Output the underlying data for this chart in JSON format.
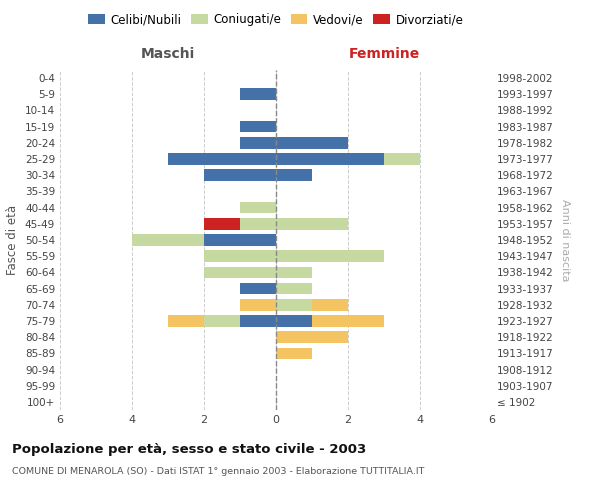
{
  "age_groups": [
    "100+",
    "95-99",
    "90-94",
    "85-89",
    "80-84",
    "75-79",
    "70-74",
    "65-69",
    "60-64",
    "55-59",
    "50-54",
    "45-49",
    "40-44",
    "35-39",
    "30-34",
    "25-29",
    "20-24",
    "15-19",
    "10-14",
    "5-9",
    "0-4"
  ],
  "birth_years": [
    "≤ 1902",
    "1903-1907",
    "1908-1912",
    "1913-1917",
    "1918-1922",
    "1923-1927",
    "1928-1932",
    "1933-1937",
    "1938-1942",
    "1943-1947",
    "1948-1952",
    "1953-1957",
    "1958-1962",
    "1963-1967",
    "1968-1972",
    "1973-1977",
    "1978-1982",
    "1983-1987",
    "1988-1992",
    "1993-1997",
    "1998-2002"
  ],
  "maschi_celibi": [
    0,
    0,
    0,
    0,
    0,
    1,
    0,
    1,
    0,
    0,
    2,
    0,
    0,
    0,
    2,
    3,
    1,
    1,
    0,
    1,
    0
  ],
  "maschi_coniugati": [
    0,
    0,
    0,
    0,
    0,
    1,
    0,
    0,
    2,
    2,
    2,
    1,
    1,
    0,
    0,
    0,
    0,
    0,
    0,
    0,
    0
  ],
  "maschi_vedovi": [
    0,
    0,
    0,
    0,
    0,
    1,
    1,
    0,
    0,
    0,
    0,
    0,
    0,
    0,
    0,
    0,
    0,
    0,
    0,
    0,
    0
  ],
  "maschi_divorziati": [
    0,
    0,
    0,
    0,
    0,
    0,
    0,
    0,
    0,
    0,
    0,
    1,
    0,
    0,
    0,
    0,
    0,
    0,
    0,
    0,
    0
  ],
  "femmine_nubili": [
    0,
    0,
    0,
    0,
    0,
    1,
    0,
    0,
    0,
    0,
    0,
    0,
    0,
    0,
    1,
    3,
    2,
    0,
    0,
    0,
    0
  ],
  "femmine_coniugate": [
    0,
    0,
    0,
    0,
    0,
    0,
    1,
    1,
    1,
    3,
    0,
    2,
    0,
    0,
    0,
    1,
    0,
    0,
    0,
    0,
    0
  ],
  "femmine_vedove": [
    0,
    0,
    0,
    1,
    2,
    2,
    1,
    0,
    0,
    0,
    0,
    0,
    0,
    0,
    0,
    0,
    0,
    0,
    0,
    0,
    0
  ],
  "femmine_divorziate": [
    0,
    0,
    0,
    0,
    0,
    0,
    0,
    0,
    0,
    0,
    0,
    0,
    0,
    0,
    0,
    0,
    0,
    0,
    0,
    0,
    0
  ],
  "color_celibi": "#4472a8",
  "color_coniugati": "#c5d9a0",
  "color_vedovi": "#f5c462",
  "color_divorziati": "#cc2222",
  "xlim": 6,
  "title": "Popolazione per età, sesso e stato civile - 2003",
  "subtitle": "COMUNE DI MENAROLA (SO) - Dati ISTAT 1° gennaio 2003 - Elaborazione TUTTITALIA.IT",
  "legend_labels": [
    "Celibi/Nubili",
    "Coniugati/e",
    "Vedovi/e",
    "Divorziati/e"
  ],
  "label_maschi": "Maschi",
  "label_femmine": "Femmine",
  "label_fasce": "Fasce di età",
  "label_anni": "Anni di nascita",
  "bg_color": "#ffffff",
  "grid_color": "#cccccc",
  "bar_height": 0.72
}
